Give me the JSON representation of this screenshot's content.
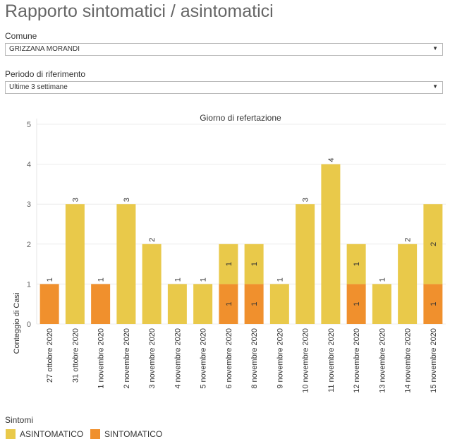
{
  "header": {
    "title": "Rapporto sintomatici / asintomatici"
  },
  "filters": {
    "comune": {
      "label": "Comune",
      "value": "GRIZZANA MORANDI",
      "icon": "chevron-down-icon",
      "caret": "▼"
    },
    "periodo": {
      "label": "Periodo di riferimento",
      "value": "Ultime 3 settimane",
      "icon": "chevron-down-icon",
      "caret": "▼"
    }
  },
  "chart_data": {
    "type": "bar",
    "stacked": true,
    "title": "Giorno di refertazione",
    "xlabel": "",
    "ylabel": "Conteggio di Casi",
    "ylim": [
      0,
      5
    ],
    "yticks": [
      0,
      1,
      2,
      3,
      4,
      5
    ],
    "grid": true,
    "categories": [
      "27 ott​obre 2020"
    ],
    "series": []
  },
  "legend": {
    "title": "Sintomi",
    "items": [
      {
        "label": "ASINTOMATICO",
        "color": "#e9c94a"
      },
      {
        "label": "SINTOMATICO",
        "color": "#f0902d"
      }
    ]
  }
}
